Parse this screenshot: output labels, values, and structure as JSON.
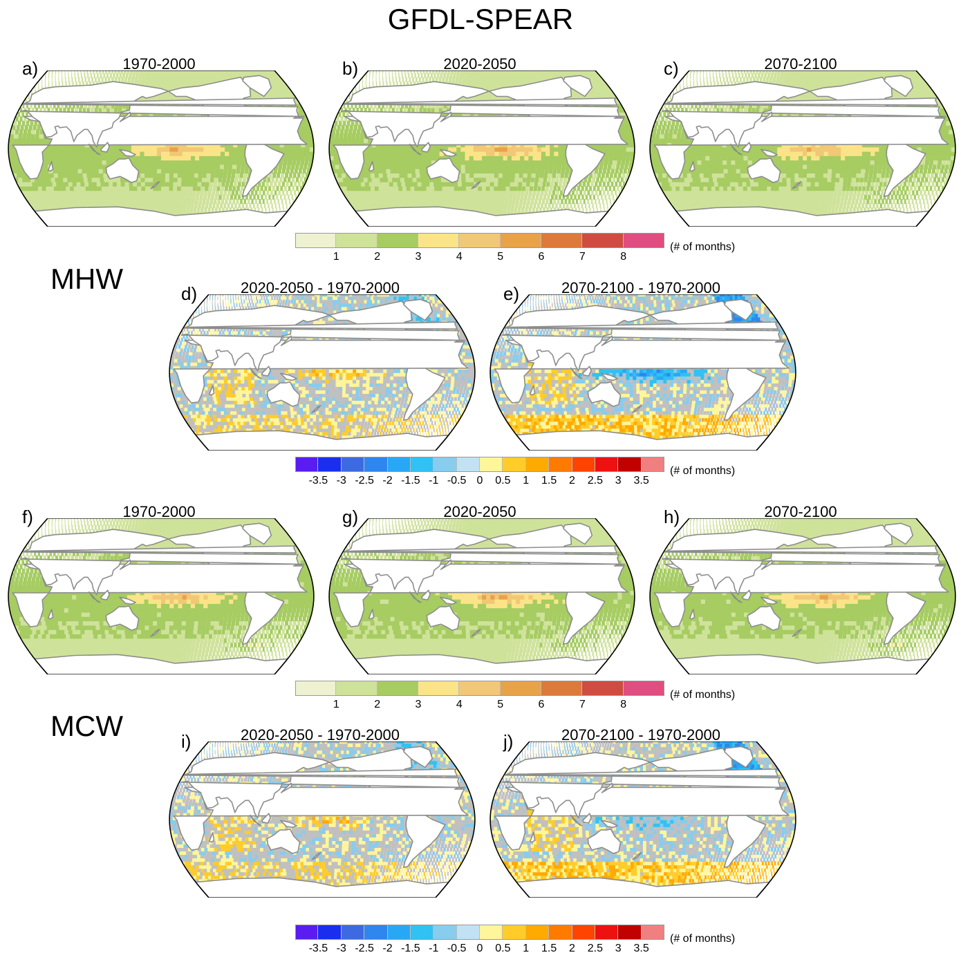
{
  "figure": {
    "title": "GFDL-SPEAR",
    "sections": {
      "mhw": "MHW",
      "mcw": "MCW"
    }
  },
  "panels": {
    "a": {
      "label": "a)",
      "title": "1970-2000"
    },
    "b": {
      "label": "b)",
      "title": "2020-2050"
    },
    "c": {
      "label": "c)",
      "title": "2070-2100"
    },
    "d": {
      "label": "d)",
      "title": "2020-2050 - 1970-2000"
    },
    "e": {
      "label": "e)",
      "title": "2070-2100 - 1970-2000"
    },
    "f": {
      "label": "f)",
      "title": "1970-2000"
    },
    "g": {
      "label": "g)",
      "title": "2020-2050"
    },
    "h": {
      "label": "h)",
      "title": "2070-2100"
    },
    "i": {
      "label": "i)",
      "title": "2020-2050 - 1970-2000"
    },
    "j": {
      "label": "j)",
      "title": "2070-2100 - 1970-2000"
    }
  },
  "colorbars": {
    "absolute": {
      "unit": "(# of months)",
      "ticks": [
        "1",
        "2",
        "3",
        "4",
        "5",
        "6",
        "7",
        "8"
      ],
      "colors": [
        "#eef2d0",
        "#cfe29a",
        "#a6cc62",
        "#fbe488",
        "#f1c877",
        "#e8a248",
        "#dc7a3c",
        "#d04b41",
        "#e04d80"
      ]
    },
    "difference": {
      "unit": "(# of months)",
      "ticks": [
        "-3.5",
        "-3",
        "-2.5",
        "-2",
        "-1.5",
        "-1",
        "-0.5",
        "0",
        "0.5",
        "1",
        "1.5",
        "2",
        "2.5",
        "3",
        "3.5"
      ],
      "colors": [
        "#5a1cf0",
        "#1a2ef0",
        "#3d6ae0",
        "#2e86ee",
        "#28a8f4",
        "#30c2f2",
        "#88ccee",
        "#c2e2f4",
        "#fff59a",
        "#ffcc2a",
        "#ffaa00",
        "#ff7a00",
        "#ff4400",
        "#ee1111",
        "#c10000",
        "#f08080"
      ]
    }
  }
}
